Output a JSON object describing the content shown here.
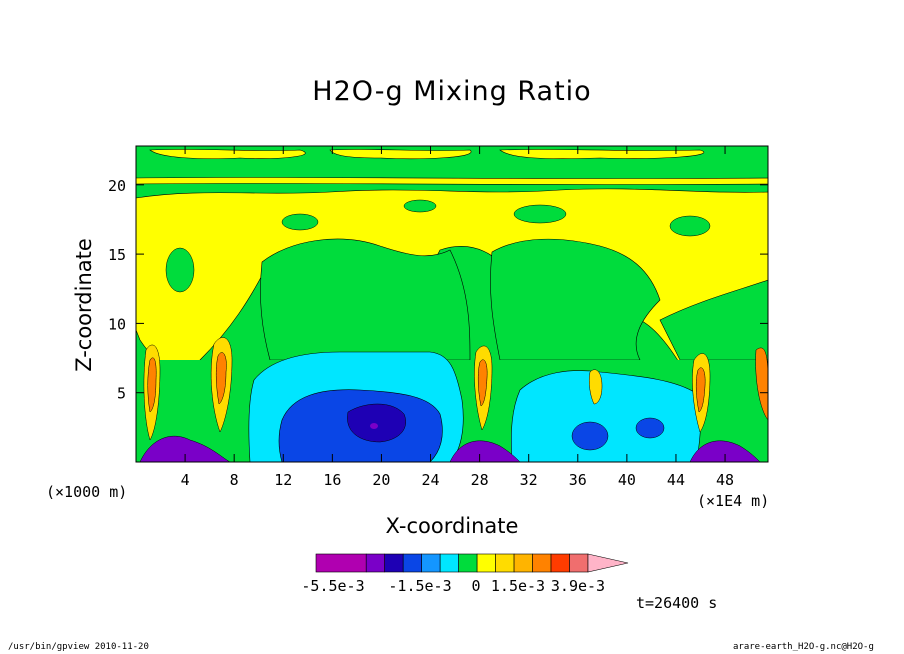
{
  "chart_data": {
    "type": "heatmap",
    "title": "H2O-g Mixing Ratio",
    "xlabel": "X-coordinate",
    "ylabel": "Z-coordinate",
    "x_unit": "(×1000 m)",
    "x_scale": "(×1E4 m)",
    "time_label": "t=26400 s",
    "xlim": [
      0,
      51.5
    ],
    "ylim": [
      0,
      22.8
    ],
    "x_ticks": [
      4,
      8,
      12,
      16,
      20,
      24,
      28,
      32,
      36,
      40,
      44,
      48
    ],
    "y_ticks": [
      5,
      10,
      15,
      20
    ],
    "colorbar": {
      "labels": [
        "-5.5e-3",
        "-1.5e-3",
        "0",
        "1.5e-3",
        "3.9e-3"
      ],
      "colors": [
        "#b000b0",
        "#7a00c8",
        "#1e00b4",
        "#0a46e6",
        "#1496ff",
        "#00e6ff",
        "#00dc3c",
        "#ffff00",
        "#ffdc00",
        "#ffb400",
        "#ff8200",
        "#ff3c00",
        "#f06e6e",
        "#ffb4c8"
      ]
    },
    "regions": [
      {
        "level": "green",
        "value": "0 to 7.5e-4",
        "color": "#00dc3c"
      },
      {
        "level": "yellow",
        "value": "7.5e-4 to 1.5e-3",
        "color": "#ffff00"
      },
      {
        "level": "cyan",
        "value": "-2.5e-4 to 0",
        "color": "#00e6ff"
      },
      {
        "level": "blue",
        "value": "-1.0e-3 to -5e-4",
        "color": "#0a46e6"
      },
      {
        "level": "purple",
        "value": "below -1.5e-3",
        "color": "#7a00c8"
      },
      {
        "level": "orange",
        "value": "2.4e-3 to 3.3e-3",
        "color": "#ff8200"
      }
    ]
  },
  "footer": {
    "left": "/usr/bin/gpview  2010-11-20",
    "right": "arare-earth_H2O-g.nc@H2O-g"
  }
}
